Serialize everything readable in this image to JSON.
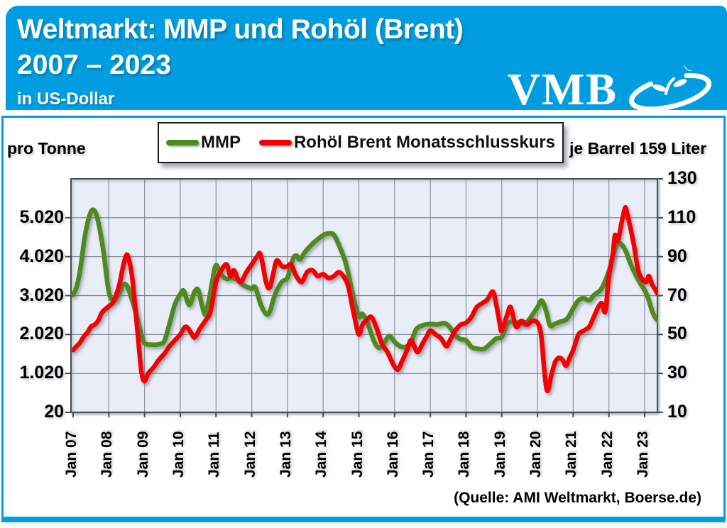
{
  "header": {
    "title_line1": "Weltmarkt: MMP und Rohöl (Brent)",
    "title_line2": "2007 – 2023",
    "subtitle": "in US-Dollar",
    "logo_text": "VMB",
    "background_color": "#009ee0"
  },
  "legend": {
    "items": [
      {
        "label": "MMP",
        "color": "#4f8a1d"
      },
      {
        "label": "Rohöl Brent Monatsschlusskurs",
        "color": "#f40000"
      }
    ]
  },
  "axis_captions": {
    "left": "pro Tonne",
    "right": "je Barrel 159 Liter"
  },
  "source": "(Quelle: AMI Weltmarkt, Boerse.de)",
  "chart_data": {
    "type": "line",
    "plot_background": "#e9edf7",
    "grid": true,
    "x_ticks": [
      "Jan 07",
      "Jan 08",
      "Jan 09",
      "Jan 10",
      "Jan 11",
      "Jan 12",
      "Jan 13",
      "Jan 14",
      "Jan 15",
      "Jan 16",
      "Jan 17",
      "Jan 18",
      "Jan 19",
      "Jan 20",
      "Jan 21",
      "Jan 22",
      "Jan 23"
    ],
    "left_axis": {
      "caption": "pro Tonne",
      "ticks": [
        "5.020",
        "4.020",
        "3.020",
        "2.020",
        "1.020",
        "20"
      ],
      "tick_values": [
        5020,
        4020,
        3020,
        2020,
        1020,
        20
      ],
      "range": [
        20,
        6020
      ]
    },
    "right_axis": {
      "caption": "je Barrel 159 Liter",
      "ticks": [
        "130",
        "110",
        "90",
        "70",
        "50",
        "30",
        "10"
      ],
      "tick_values": [
        130,
        110,
        90,
        70,
        50,
        30,
        10
      ],
      "range": [
        10,
        130
      ]
    },
    "series": [
      {
        "name": "MMP",
        "axis": "left",
        "color": "#4f8a1d",
        "unit": "USD je Tonne",
        "points": [
          [
            2007.0,
            3040
          ],
          [
            2007.1,
            3250
          ],
          [
            2007.2,
            3700
          ],
          [
            2007.33,
            4550
          ],
          [
            2007.45,
            5050
          ],
          [
            2007.55,
            5225
          ],
          [
            2007.65,
            5100
          ],
          [
            2007.75,
            4700
          ],
          [
            2007.85,
            4150
          ],
          [
            2008.0,
            3120
          ],
          [
            2008.15,
            2900
          ],
          [
            2008.3,
            3100
          ],
          [
            2008.4,
            3300
          ],
          [
            2008.5,
            3280
          ],
          [
            2008.6,
            3050
          ],
          [
            2008.75,
            2600
          ],
          [
            2008.9,
            2050
          ],
          [
            2009.0,
            1800
          ],
          [
            2009.2,
            1760
          ],
          [
            2009.4,
            1770
          ],
          [
            2009.55,
            1850
          ],
          [
            2009.7,
            2300
          ],
          [
            2009.85,
            2800
          ],
          [
            2010.0,
            3060
          ],
          [
            2010.1,
            3140
          ],
          [
            2010.25,
            2780
          ],
          [
            2010.4,
            3120
          ],
          [
            2010.5,
            3170
          ],
          [
            2010.6,
            2800
          ],
          [
            2010.7,
            2530
          ],
          [
            2010.8,
            2900
          ],
          [
            2010.9,
            3400
          ],
          [
            2011.0,
            3800
          ],
          [
            2011.15,
            3550
          ],
          [
            2011.3,
            3450
          ],
          [
            2011.45,
            3480
          ],
          [
            2011.6,
            3420
          ],
          [
            2011.75,
            3300
          ],
          [
            2011.9,
            3230
          ],
          [
            2012.0,
            3200
          ],
          [
            2012.1,
            3230
          ],
          [
            2012.25,
            2800
          ],
          [
            2012.4,
            2550
          ],
          [
            2012.5,
            2600
          ],
          [
            2012.6,
            2900
          ],
          [
            2012.7,
            3150
          ],
          [
            2012.85,
            3380
          ],
          [
            2013.0,
            3480
          ],
          [
            2013.15,
            3950
          ],
          [
            2013.25,
            4050
          ],
          [
            2013.35,
            3950
          ],
          [
            2013.5,
            4150
          ],
          [
            2013.7,
            4350
          ],
          [
            2013.85,
            4470
          ],
          [
            2014.0,
            4570
          ],
          [
            2014.15,
            4620
          ],
          [
            2014.3,
            4580
          ],
          [
            2014.45,
            4300
          ],
          [
            2014.6,
            3950
          ],
          [
            2014.7,
            3600
          ],
          [
            2014.85,
            2950
          ],
          [
            2015.0,
            2480
          ],
          [
            2015.1,
            2550
          ],
          [
            2015.25,
            2300
          ],
          [
            2015.4,
            1900
          ],
          [
            2015.55,
            1680
          ],
          [
            2015.7,
            1800
          ],
          [
            2015.85,
            1980
          ],
          [
            2016.0,
            1830
          ],
          [
            2016.15,
            1720
          ],
          [
            2016.3,
            1700
          ],
          [
            2016.45,
            1800
          ],
          [
            2016.6,
            2150
          ],
          [
            2016.8,
            2260
          ],
          [
            2017.0,
            2290
          ],
          [
            2017.2,
            2280
          ],
          [
            2017.4,
            2310
          ],
          [
            2017.55,
            2200
          ],
          [
            2017.7,
            2000
          ],
          [
            2017.85,
            1900
          ],
          [
            2018.0,
            1870
          ],
          [
            2018.15,
            1700
          ],
          [
            2018.3,
            1660
          ],
          [
            2018.5,
            1650
          ],
          [
            2018.7,
            1800
          ],
          [
            2018.85,
            1920
          ],
          [
            2019.0,
            1960
          ],
          [
            2019.15,
            2280
          ],
          [
            2019.3,
            2350
          ],
          [
            2019.5,
            2320
          ],
          [
            2019.65,
            2300
          ],
          [
            2019.8,
            2450
          ],
          [
            2020.0,
            2720
          ],
          [
            2020.12,
            2890
          ],
          [
            2020.25,
            2600
          ],
          [
            2020.35,
            2250
          ],
          [
            2020.5,
            2300
          ],
          [
            2020.65,
            2350
          ],
          [
            2020.8,
            2400
          ],
          [
            2020.9,
            2520
          ],
          [
            2021.0,
            2690
          ],
          [
            2021.15,
            2900
          ],
          [
            2021.3,
            2950
          ],
          [
            2021.45,
            2900
          ],
          [
            2021.6,
            3050
          ],
          [
            2021.75,
            3150
          ],
          [
            2021.85,
            3300
          ],
          [
            2022.0,
            3650
          ],
          [
            2022.1,
            4000
          ],
          [
            2022.2,
            4300
          ],
          [
            2022.3,
            4365
          ],
          [
            2022.4,
            4280
          ],
          [
            2022.5,
            4100
          ],
          [
            2022.6,
            3850
          ],
          [
            2022.75,
            3550
          ],
          [
            2022.9,
            3300
          ],
          [
            2023.0,
            3160
          ],
          [
            2023.1,
            2950
          ],
          [
            2023.2,
            2650
          ],
          [
            2023.3,
            2450
          ],
          [
            2023.38,
            2380
          ]
        ]
      },
      {
        "name": "Rohöl Brent Monatsschlusskurs",
        "axis": "right",
        "color": "#f40000",
        "unit": "USD je Barrel",
        "points": [
          [
            2007.0,
            42
          ],
          [
            2007.1,
            44
          ],
          [
            2007.2,
            46
          ],
          [
            2007.3,
            49
          ],
          [
            2007.4,
            51
          ],
          [
            2007.5,
            54
          ],
          [
            2007.6,
            55
          ],
          [
            2007.7,
            57
          ],
          [
            2007.8,
            61
          ],
          [
            2007.9,
            63
          ],
          [
            2008.0,
            64.5
          ],
          [
            2008.1,
            66
          ],
          [
            2008.2,
            70
          ],
          [
            2008.3,
            76
          ],
          [
            2008.4,
            85
          ],
          [
            2008.5,
            91
          ],
          [
            2008.58,
            87
          ],
          [
            2008.65,
            80
          ],
          [
            2008.75,
            62
          ],
          [
            2008.85,
            42
          ],
          [
            2008.92,
            30
          ],
          [
            2009.0,
            26
          ],
          [
            2009.1,
            30
          ],
          [
            2009.25,
            33
          ],
          [
            2009.4,
            37
          ],
          [
            2009.55,
            40
          ],
          [
            2009.7,
            44
          ],
          [
            2009.85,
            47
          ],
          [
            2010.0,
            50
          ],
          [
            2010.15,
            54
          ],
          [
            2010.3,
            51
          ],
          [
            2010.4,
            48.5
          ],
          [
            2010.55,
            53
          ],
          [
            2010.7,
            57
          ],
          [
            2010.85,
            62
          ],
          [
            2011.0,
            77
          ],
          [
            2011.15,
            83
          ],
          [
            2011.3,
            86
          ],
          [
            2011.4,
            80
          ],
          [
            2011.5,
            83
          ],
          [
            2011.6,
            79
          ],
          [
            2011.7,
            77
          ],
          [
            2011.85,
            82
          ],
          [
            2012.0,
            86
          ],
          [
            2012.15,
            90
          ],
          [
            2012.25,
            91
          ],
          [
            2012.4,
            77
          ],
          [
            2012.5,
            74
          ],
          [
            2012.6,
            81
          ],
          [
            2012.7,
            88
          ],
          [
            2012.85,
            85
          ],
          [
            2013.0,
            85
          ],
          [
            2013.1,
            86
          ],
          [
            2013.25,
            80
          ],
          [
            2013.4,
            77
          ],
          [
            2013.55,
            82
          ],
          [
            2013.7,
            83
          ],
          [
            2013.85,
            80
          ],
          [
            2014.0,
            81
          ],
          [
            2014.15,
            79
          ],
          [
            2014.3,
            80
          ],
          [
            2014.45,
            82
          ],
          [
            2014.6,
            79
          ],
          [
            2014.7,
            75
          ],
          [
            2014.8,
            66
          ],
          [
            2014.9,
            57
          ],
          [
            2015.0,
            50
          ],
          [
            2015.1,
            55
          ],
          [
            2015.2,
            57
          ],
          [
            2015.35,
            59
          ],
          [
            2015.5,
            53
          ],
          [
            2015.65,
            45
          ],
          [
            2015.8,
            41
          ],
          [
            2015.9,
            37
          ],
          [
            2016.0,
            33.5
          ],
          [
            2016.1,
            32
          ],
          [
            2016.2,
            36
          ],
          [
            2016.35,
            42
          ],
          [
            2016.45,
            47
          ],
          [
            2016.55,
            44
          ],
          [
            2016.65,
            41
          ],
          [
            2016.8,
            46
          ],
          [
            2016.9,
            49
          ],
          [
            2017.0,
            52
          ],
          [
            2017.15,
            50
          ],
          [
            2017.3,
            48
          ],
          [
            2017.45,
            44
          ],
          [
            2017.55,
            47
          ],
          [
            2017.7,
            52
          ],
          [
            2017.85,
            55
          ],
          [
            2018.0,
            56
          ],
          [
            2018.15,
            59
          ],
          [
            2018.3,
            64
          ],
          [
            2018.45,
            66
          ],
          [
            2018.6,
            68
          ],
          [
            2018.75,
            72
          ],
          [
            2018.85,
            65
          ],
          [
            2018.95,
            55
          ],
          [
            2019.0,
            52
          ],
          [
            2019.15,
            60
          ],
          [
            2019.25,
            64
          ],
          [
            2019.4,
            54
          ],
          [
            2019.55,
            57
          ],
          [
            2019.7,
            55
          ],
          [
            2019.85,
            57
          ],
          [
            2020.0,
            56
          ],
          [
            2020.1,
            50
          ],
          [
            2020.2,
            30
          ],
          [
            2020.28,
            21
          ],
          [
            2020.4,
            30
          ],
          [
            2020.5,
            36
          ],
          [
            2020.6,
            38
          ],
          [
            2020.7,
            37
          ],
          [
            2020.8,
            34
          ],
          [
            2020.9,
            38
          ],
          [
            2021.0,
            42
          ],
          [
            2021.15,
            50
          ],
          [
            2021.3,
            52
          ],
          [
            2021.45,
            54
          ],
          [
            2021.6,
            60
          ],
          [
            2021.7,
            64
          ],
          [
            2021.8,
            66
          ],
          [
            2021.9,
            62
          ],
          [
            2022.0,
            80
          ],
          [
            2022.1,
            90
          ],
          [
            2022.17,
            101
          ],
          [
            2022.25,
            98
          ],
          [
            2022.35,
            107
          ],
          [
            2022.45,
            115
          ],
          [
            2022.5,
            113
          ],
          [
            2022.6,
            105
          ],
          [
            2022.7,
            96
          ],
          [
            2022.75,
            90
          ],
          [
            2022.8,
            85
          ],
          [
            2022.85,
            81
          ],
          [
            2022.95,
            78
          ],
          [
            2023.05,
            77
          ],
          [
            2023.12,
            80
          ],
          [
            2023.2,
            76
          ],
          [
            2023.3,
            73
          ],
          [
            2023.36,
            71
          ]
        ]
      }
    ]
  }
}
